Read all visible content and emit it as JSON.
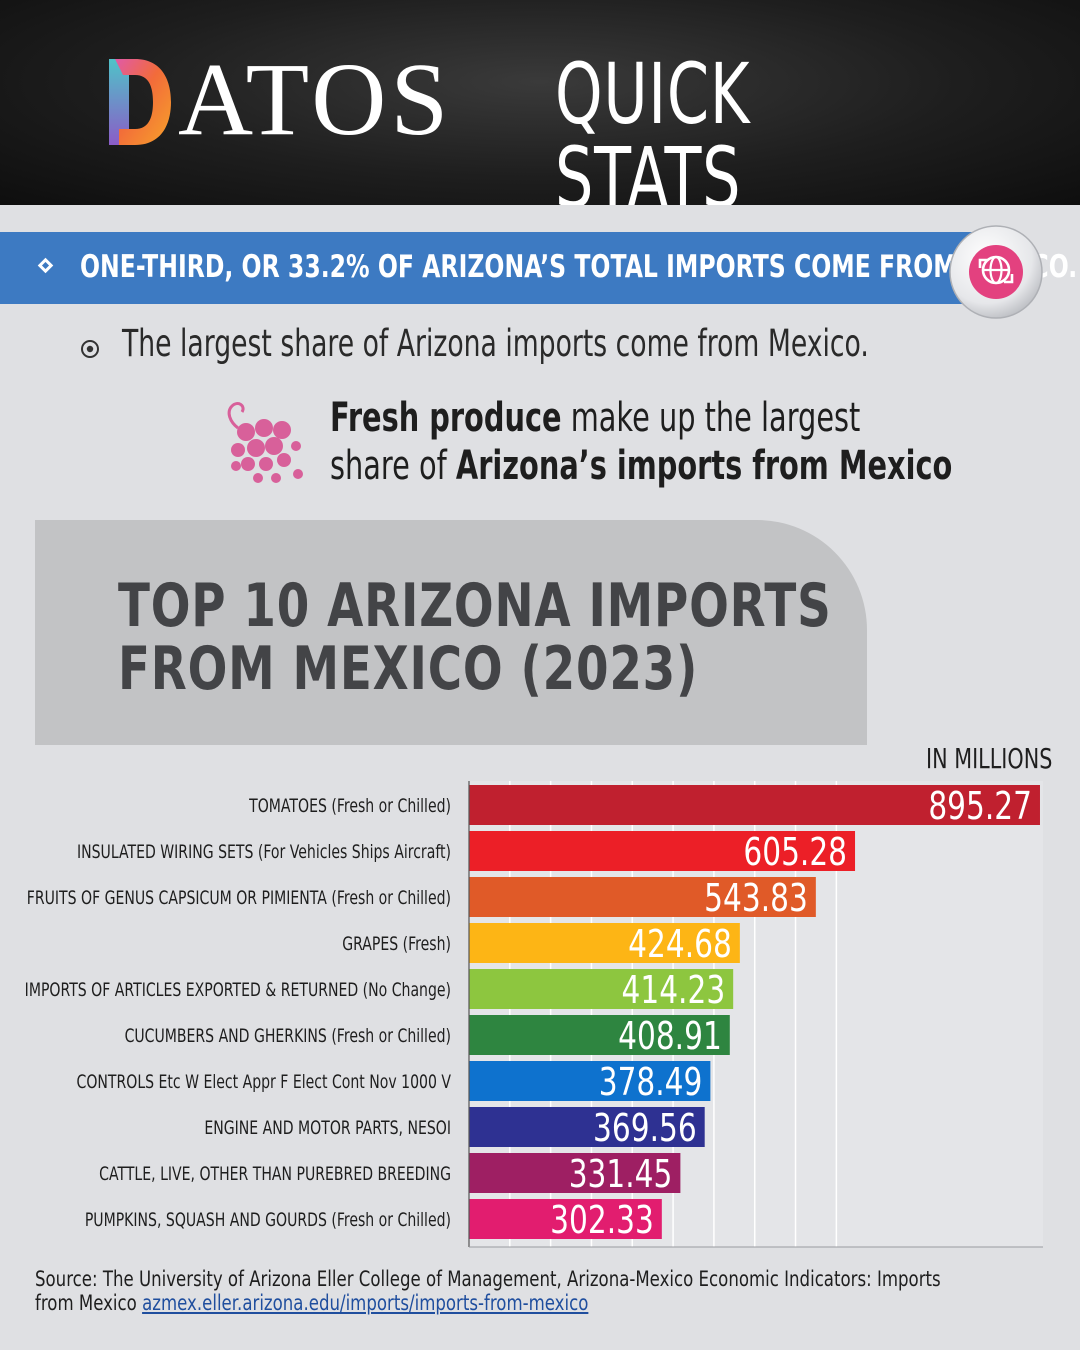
{
  "header": {
    "brand_word": "ATOS",
    "logo_letter": "D",
    "title": "QUICK STATS"
  },
  "banner": {
    "text": "ONE-THIRD, OR 33.2% OF ARIZONA’S TOTAL IMPORTS COME FROM MEXICO.",
    "badge_icon": "globe-exchange-icon"
  },
  "bullet": {
    "text": "The largest share of Arizona imports come from Mexico."
  },
  "callout": {
    "icon": "grapes-icon",
    "line1_bold": "Fresh produce",
    "line1_rest": " make up the largest",
    "line2_pre": "share of ",
    "line2_bold": "Arizona’s imports from Mexico"
  },
  "chart_data": {
    "type": "bar",
    "orientation": "horizontal",
    "title": "TOP 10 ARIZONA IMPORTS FROM MEXICO (2023)",
    "title_lines": [
      "TOP 10 ARIZONA IMPORTS",
      "FROM MEXICO (2023)"
    ],
    "unit": "IN MILLIONS",
    "categories": [
      "TOMATOES (Fresh or Chilled)",
      "INSULATED WIRING SETS (For Vehicles Ships Aircraft)",
      "FRUITS OF GENUS CAPSICUM OR PIMIENTA (Fresh or Chilled)",
      "GRAPES (Fresh)",
      "IMPORTS OF ARTICLES EXPORTED & RETURNED (No Change)",
      "CUCUMBERS AND GHERKINS (Fresh or Chilled)",
      "CONTROLS Etc W Elect Appr F Elect Cont Nov 1000 V",
      "ENGINE AND MOTOR PARTS, NESOI",
      "CATTLE, LIVE, OTHER THAN PUREBRED BREEDING",
      "PUMPKINS, SQUASH AND GOURDS (Fresh or Chilled)"
    ],
    "values": [
      895.27,
      605.28,
      543.83,
      424.68,
      414.23,
      408.91,
      378.49,
      369.56,
      331.45,
      302.33
    ],
    "value_labels": [
      "895.27",
      "605.28",
      "543.83",
      "424.68",
      "414.23",
      "408.91",
      "378.49",
      "369.56",
      "331.45",
      "302.33"
    ],
    "colors": [
      "#c0202f",
      "#ec1f27",
      "#e05a28",
      "#fdb515",
      "#8dc63f",
      "#2e8540",
      "#0e72ce",
      "#2e3192",
      "#9e1f63",
      "#e21d6f"
    ],
    "xlim": [
      0,
      900
    ],
    "grid": true
  },
  "source": {
    "text": "Source: The University of Arizona Eller College of Management, Arizona-Mexico Economic Indicators: Imports",
    "text2": "from Mexico ",
    "link": "azmex.eller.arizona.edu/imports/imports-from-mexico"
  }
}
